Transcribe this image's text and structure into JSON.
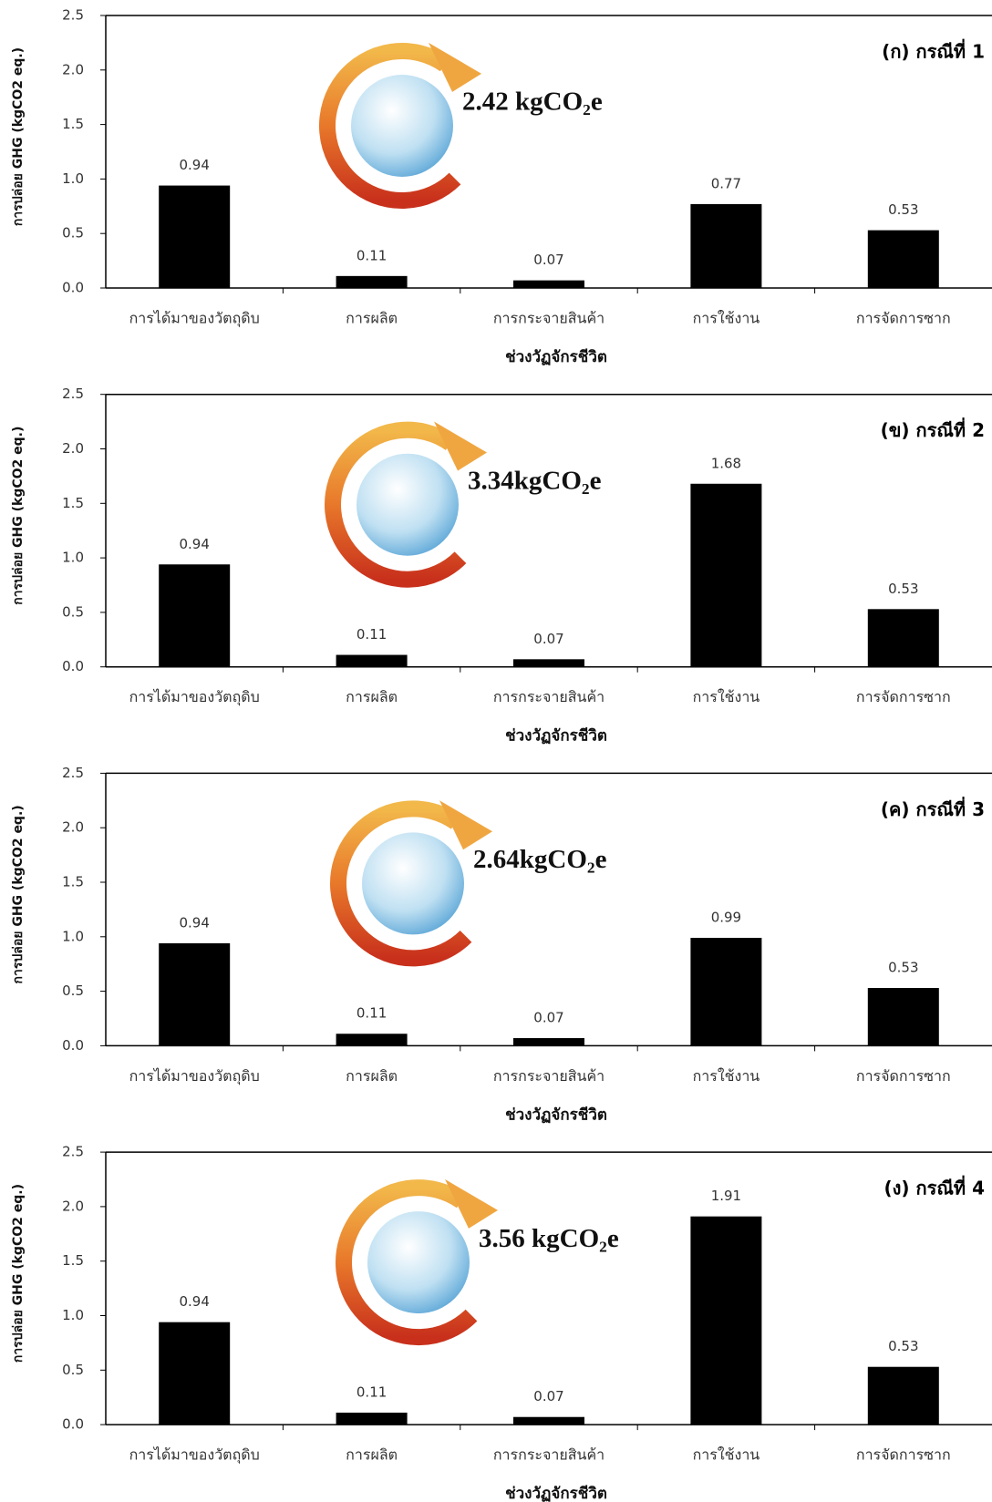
{
  "chart_data": [
    {
      "type": "bar",
      "annotation": "(ก) กรณีที่ 1",
      "total_label": "2.42 kgCO₂e",
      "categories": [
        "การได้มาของวัตถุดิบ",
        "การผลิต",
        "การกระจายสินค้า",
        "การใช้งาน",
        "การจัดการซาก"
      ],
      "values": [
        0.94,
        0.11,
        0.07,
        0.77,
        0.53
      ],
      "color": "#000000",
      "xlabel": "ช่วงวัฏจักรชีวิต",
      "ylabel": "การปล่อย GHG (kgCO2 eq.)",
      "ylim": [
        0,
        2.5
      ],
      "yticks": [
        {
          "value": 0,
          "label": "0.0"
        },
        {
          "value": 0.5,
          "label": "0.5"
        },
        {
          "value": 1,
          "label": "1.0"
        },
        {
          "value": 1.5,
          "label": "1.5"
        },
        {
          "value": 2,
          "label": "2.0"
        },
        {
          "value": 2.5,
          "label": "2.5"
        }
      ]
    },
    {
      "type": "bar",
      "annotation": "(ข) กรณีที่ 2",
      "total_label": "3.34kgCO₂e",
      "categories": [
        "การได้มาของวัตถุดิบ",
        "การผลิต",
        "การกระจายสินค้า",
        "การใช้งาน",
        "การจัดการซาก"
      ],
      "values": [
        0.94,
        0.11,
        0.07,
        1.68,
        0.53
      ],
      "color": "#000000",
      "xlabel": "ช่วงวัฏจักรชีวิต",
      "ylabel": "การปล่อย GHG (kgCO2 eq.)",
      "ylim": [
        0,
        2.5
      ],
      "yticks": [
        {
          "value": 0,
          "label": "0.0"
        },
        {
          "value": 0.5,
          "label": "0.5"
        },
        {
          "value": 1,
          "label": "1.0"
        },
        {
          "value": 1.5,
          "label": "1.5"
        },
        {
          "value": 2,
          "label": "2.0"
        },
        {
          "value": 2.5,
          "label": "2.5"
        }
      ]
    },
    {
      "type": "bar",
      "annotation": "(ค) กรณีที่ 3",
      "total_label": "2.64kgCO₂e",
      "categories": [
        "การได้มาของวัตถุดิบ",
        "การผลิต",
        "การกระจายสินค้า",
        "การใช้งาน",
        "การจัดการซาก"
      ],
      "values": [
        0.94,
        0.11,
        0.07,
        0.99,
        0.53
      ],
      "color": "#000000",
      "xlabel": "ช่วงวัฏจักรชีวิต",
      "ylabel": "การปล่อย GHG (kgCO2 eq.)",
      "ylim": [
        0,
        2.5
      ],
      "yticks": [
        {
          "value": 0,
          "label": "0.0"
        },
        {
          "value": 0.5,
          "label": "0.5"
        },
        {
          "value": 1,
          "label": "1.0"
        },
        {
          "value": 1.5,
          "label": "1.5"
        },
        {
          "value": 2,
          "label": "2.0"
        },
        {
          "value": 2.5,
          "label": "2.5"
        }
      ]
    },
    {
      "type": "bar",
      "annotation": "(ง) กรณีที่ 4",
      "total_label": "3.56 kgCO₂e",
      "categories": [
        "การได้มาของวัตถุดิบ",
        "การผลิต",
        "การกระจายสินค้า",
        "การใช้งาน",
        "การจัดการซาก"
      ],
      "values": [
        0.94,
        0.11,
        0.07,
        1.91,
        0.53
      ],
      "color": "#000000",
      "xlabel": "ช่วงวัฏจักรชีวิต",
      "ylabel": "การปล่อย GHG (kgCO2 eq.)",
      "ylim": [
        0,
        2.5
      ],
      "yticks": [
        {
          "value": 0,
          "label": "0.0"
        },
        {
          "value": 0.5,
          "label": "0.5"
        },
        {
          "value": 1,
          "label": "1.0"
        },
        {
          "value": 1.5,
          "label": "1.5"
        },
        {
          "value": 2,
          "label": "2.0"
        },
        {
          "value": 2.5,
          "label": "2.5"
        }
      ]
    }
  ]
}
